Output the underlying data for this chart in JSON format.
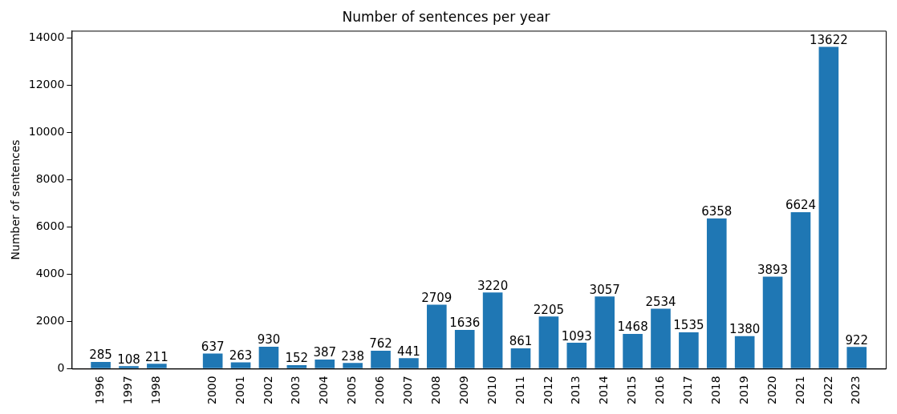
{
  "chart_data": {
    "type": "bar",
    "title": "Number of sentences per year",
    "ylabel": "Number of sentences",
    "x": [
      1996,
      1997,
      1998,
      2000,
      2001,
      2002,
      2003,
      2004,
      2005,
      2006,
      2007,
      2008,
      2009,
      2010,
      2011,
      2012,
      2013,
      2014,
      2015,
      2016,
      2017,
      2018,
      2019,
      2020,
      2021,
      2022,
      2023
    ],
    "values": [
      285,
      108,
      211,
      637,
      263,
      930,
      152,
      387,
      238,
      762,
      441,
      2709,
      1636,
      3220,
      861,
      2205,
      1093,
      3057,
      1468,
      2534,
      1535,
      6358,
      1380,
      3893,
      6624,
      13622,
      922
    ],
    "color": "#1f77b4",
    "xlim": [
      1995.5,
      2023.5
    ],
    "xticks": [
      1996,
      1997,
      1998,
      2000,
      2001,
      2002,
      2003,
      2004,
      2005,
      2006,
      2007,
      2008,
      2009,
      2010,
      2011,
      2012,
      2013,
      2014,
      2015,
      2016,
      2017,
      2018,
      2019,
      2020,
      2021,
      2022,
      2023
    ],
    "ylim": [
      0,
      14300
    ],
    "yticks": [
      0,
      2000,
      4000,
      6000,
      8000,
      10000,
      12000,
      14000
    ],
    "data_labels": true,
    "grid": false,
    "legend": false
  }
}
